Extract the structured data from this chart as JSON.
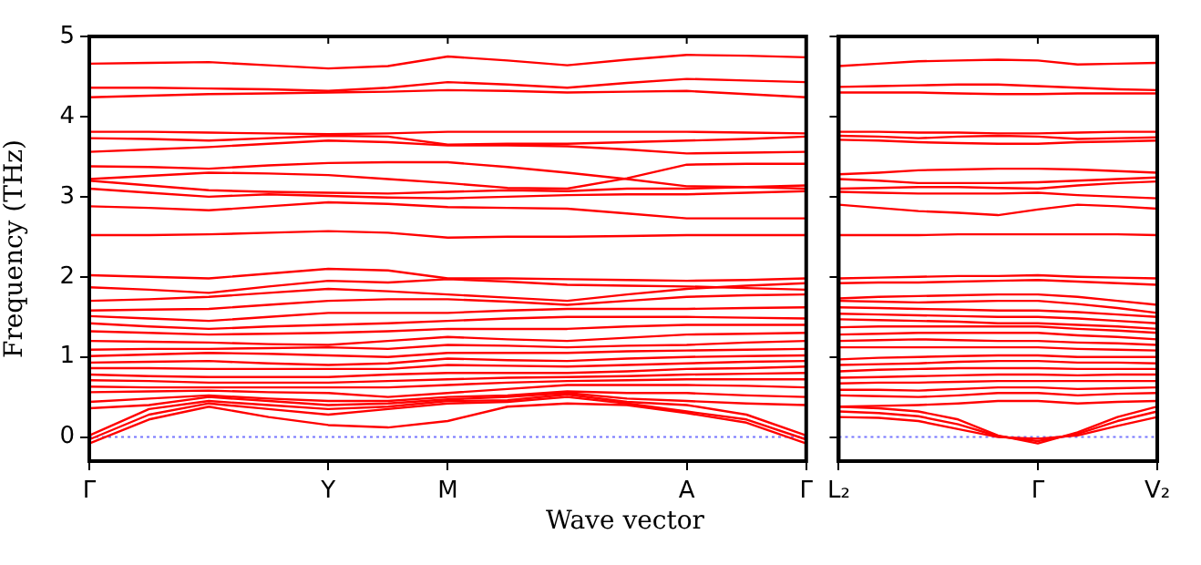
{
  "chart_data": [
    {
      "type": "line",
      "ylabel": "Frequency (THz)",
      "xlabel": "Wave vector",
      "grid": false,
      "legend": false,
      "categories": [
        "Γ",
        null,
        null,
        null,
        "Y",
        null,
        "M",
        null,
        null,
        null,
        "A",
        null,
        "Γ"
      ],
      "ylim": [
        -0.3,
        5
      ],
      "yticks": [
        0,
        1,
        2,
        3,
        4,
        5
      ],
      "ref_lines": [
        {
          "axis": "y",
          "value": 0,
          "color": "#7777ff",
          "line_style": "dotted"
        }
      ],
      "series": [
        {
          "color": "#ff0000",
          "values": [
            4.66,
            4.67,
            4.68,
            4.64,
            4.6,
            4.63,
            4.75,
            4.7,
            4.64,
            4.71,
            4.77,
            4.76,
            4.74
          ]
        },
        {
          "color": "#ff0000",
          "values": [
            4.36,
            4.36,
            4.35,
            4.34,
            4.32,
            4.36,
            4.43,
            4.4,
            4.36,
            4.42,
            4.47,
            4.45,
            4.43
          ]
        },
        {
          "color": "#ff0000",
          "values": [
            4.24,
            4.26,
            4.28,
            4.29,
            4.3,
            4.31,
            4.33,
            4.32,
            4.3,
            4.31,
            4.32,
            4.28,
            4.24
          ]
        },
        {
          "color": "#ff0000",
          "values": [
            3.81,
            3.81,
            3.8,
            3.79,
            3.78,
            3.79,
            3.81,
            3.81,
            3.81,
            3.81,
            3.81,
            3.8,
            3.79
          ]
        },
        {
          "color": "#ff0000",
          "values": [
            3.73,
            3.72,
            3.7,
            3.73,
            3.76,
            3.75,
            3.65,
            3.66,
            3.66,
            3.68,
            3.7,
            3.72,
            3.75
          ]
        },
        {
          "color": "#ff0000",
          "values": [
            3.56,
            3.59,
            3.62,
            3.66,
            3.7,
            3.68,
            3.64,
            3.64,
            3.63,
            3.59,
            3.54,
            3.55,
            3.56
          ]
        },
        {
          "color": "#ff0000",
          "values": [
            3.38,
            3.37,
            3.35,
            3.39,
            3.42,
            3.43,
            3.43,
            3.37,
            3.3,
            3.22,
            3.13,
            3.12,
            3.1
          ]
        },
        {
          "color": "#ff0000",
          "values": [
            3.22,
            3.26,
            3.3,
            3.29,
            3.27,
            3.22,
            3.17,
            3.11,
            3.1,
            3.23,
            3.4,
            3.41,
            3.41
          ]
        },
        {
          "color": "#ff0000",
          "values": [
            3.2,
            3.14,
            3.08,
            3.06,
            3.05,
            3.04,
            3.06,
            3.08,
            3.07,
            3.1,
            3.1,
            3.12,
            3.14
          ]
        },
        {
          "color": "#ff0000",
          "values": [
            3.1,
            3.05,
            3.0,
            3.03,
            3.01,
            2.99,
            2.98,
            3.0,
            3.02,
            3.03,
            3.03,
            3.05,
            3.07
          ]
        },
        {
          "color": "#ff0000",
          "values": [
            2.88,
            2.86,
            2.83,
            2.88,
            2.93,
            2.91,
            2.87,
            2.86,
            2.85,
            2.79,
            2.73,
            2.73,
            2.73
          ]
        },
        {
          "color": "#ff0000",
          "values": [
            2.52,
            2.52,
            2.53,
            2.55,
            2.57,
            2.55,
            2.49,
            2.5,
            2.5,
            2.51,
            2.52,
            2.52,
            2.52
          ]
        },
        {
          "color": "#ff0000",
          "values": [
            2.02,
            2.0,
            1.98,
            2.04,
            2.1,
            2.08,
            1.98,
            1.98,
            1.97,
            1.96,
            1.95,
            1.96,
            1.98
          ]
        },
        {
          "color": "#ff0000",
          "values": [
            1.87,
            1.84,
            1.8,
            1.88,
            1.95,
            1.93,
            1.97,
            1.94,
            1.9,
            1.89,
            1.88,
            1.86,
            1.84
          ]
        },
        {
          "color": "#ff0000",
          "values": [
            1.7,
            1.72,
            1.75,
            1.8,
            1.85,
            1.82,
            1.78,
            1.74,
            1.7,
            1.78,
            1.85,
            1.89,
            1.92
          ]
        },
        {
          "color": "#ff0000",
          "values": [
            1.58,
            1.59,
            1.6,
            1.65,
            1.7,
            1.72,
            1.72,
            1.69,
            1.65,
            1.7,
            1.75,
            1.77,
            1.78
          ]
        },
        {
          "color": "#ff0000",
          "values": [
            1.51,
            1.48,
            1.45,
            1.5,
            1.55,
            1.55,
            1.55,
            1.58,
            1.6,
            1.6,
            1.6,
            1.61,
            1.62
          ]
        },
        {
          "color": "#ff0000",
          "values": [
            1.42,
            1.38,
            1.35,
            1.38,
            1.4,
            1.42,
            1.45,
            1.48,
            1.5,
            1.5,
            1.5,
            1.49,
            1.48
          ]
        },
        {
          "color": "#ff0000",
          "values": [
            1.32,
            1.3,
            1.28,
            1.29,
            1.3,
            1.32,
            1.35,
            1.35,
            1.35,
            1.38,
            1.4,
            1.4,
            1.4
          ]
        },
        {
          "color": "#ff0000",
          "values": [
            1.2,
            1.19,
            1.18,
            1.16,
            1.15,
            1.2,
            1.25,
            1.22,
            1.2,
            1.24,
            1.28,
            1.29,
            1.3
          ]
        },
        {
          "color": "#ff0000",
          "values": [
            1.09,
            1.1,
            1.1,
            1.11,
            1.12,
            1.1,
            1.15,
            1.14,
            1.12,
            1.14,
            1.15,
            1.18,
            1.2
          ]
        },
        {
          "color": "#ff0000",
          "values": [
            1.01,
            1.03,
            1.05,
            1.04,
            1.02,
            1.0,
            1.05,
            1.05,
            1.05,
            1.07,
            1.08,
            1.09,
            1.1
          ]
        },
        {
          "color": "#ff0000",
          "values": [
            0.93,
            0.94,
            0.95,
            0.92,
            0.9,
            0.92,
            0.98,
            0.96,
            0.95,
            0.98,
            1.0,
            1.01,
            1.02
          ]
        },
        {
          "color": "#ff0000",
          "values": [
            0.86,
            0.86,
            0.85,
            0.85,
            0.85,
            0.85,
            0.9,
            0.89,
            0.88,
            0.9,
            0.92,
            0.94,
            0.95
          ]
        },
        {
          "color": "#ff0000",
          "values": [
            0.78,
            0.76,
            0.75,
            0.75,
            0.75,
            0.78,
            0.8,
            0.8,
            0.8,
            0.82,
            0.85,
            0.86,
            0.88
          ]
        },
        {
          "color": "#ff0000",
          "values": [
            0.71,
            0.7,
            0.68,
            0.68,
            0.68,
            0.7,
            0.72,
            0.74,
            0.75,
            0.76,
            0.78,
            0.79,
            0.8
          ]
        },
        {
          "color": "#ff0000",
          "values": [
            0.63,
            0.62,
            0.62,
            0.62,
            0.62,
            0.62,
            0.65,
            0.68,
            0.7,
            0.71,
            0.72,
            0.72,
            0.72
          ]
        },
        {
          "color": "#ff0000",
          "values": [
            0.56,
            0.57,
            0.58,
            0.56,
            0.55,
            0.5,
            0.55,
            0.6,
            0.65,
            0.65,
            0.65,
            0.64,
            0.62
          ]
        },
        {
          "color": "#ff0000",
          "values": [
            0.44,
            0.48,
            0.52,
            0.48,
            0.45,
            0.45,
            0.5,
            0.52,
            0.57,
            0.55,
            0.55,
            0.52,
            0.5
          ]
        },
        {
          "color": "#ff0000",
          "values": [
            0.36,
            0.4,
            0.5,
            0.45,
            0.4,
            0.42,
            0.47,
            0.5,
            0.55,
            0.48,
            0.45,
            0.42,
            0.4
          ]
        },
        {
          "color": "#ff0000",
          "values": [
            0.02,
            0.35,
            0.45,
            0.4,
            0.35,
            0.38,
            0.45,
            0.46,
            0.53,
            0.44,
            0.4,
            0.28,
            0.02
          ]
        },
        {
          "color": "#ff0000",
          "values": [
            -0.03,
            0.28,
            0.42,
            0.35,
            0.28,
            0.35,
            0.42,
            0.44,
            0.5,
            0.42,
            0.32,
            0.22,
            -0.03
          ]
        },
        {
          "color": "#ff0000",
          "values": [
            -0.08,
            0.22,
            0.38,
            0.25,
            0.15,
            0.12,
            0.2,
            0.38,
            0.42,
            0.4,
            0.3,
            0.18,
            -0.08
          ]
        }
      ]
    },
    {
      "type": "line",
      "grid": false,
      "legend": false,
      "tick_labels": "x",
      "categories": [
        "L₂",
        null,
        null,
        null,
        null,
        "Γ",
        null,
        null,
        "V₂"
      ],
      "ylim": [
        -0.3,
        5
      ],
      "yticks": [
        0,
        1,
        2,
        3,
        4,
        5
      ],
      "ref_lines": [
        {
          "axis": "y",
          "value": 0,
          "color": "#7777ff",
          "line_style": "dotted"
        }
      ],
      "series": [
        {
          "color": "#ff0000",
          "values": [
            4.63,
            4.66,
            4.69,
            4.7,
            4.71,
            4.7,
            4.65,
            4.66,
            4.67
          ]
        },
        {
          "color": "#ff0000",
          "values": [
            4.37,
            4.38,
            4.39,
            4.4,
            4.4,
            4.38,
            4.36,
            4.34,
            4.33
          ]
        },
        {
          "color": "#ff0000",
          "values": [
            4.3,
            4.3,
            4.3,
            4.29,
            4.28,
            4.28,
            4.29,
            4.29,
            4.29
          ]
        },
        {
          "color": "#ff0000",
          "values": [
            3.81,
            3.81,
            3.8,
            3.8,
            3.79,
            3.79,
            3.8,
            3.81,
            3.81
          ]
        },
        {
          "color": "#ff0000",
          "values": [
            3.76,
            3.75,
            3.73,
            3.75,
            3.76,
            3.75,
            3.72,
            3.73,
            3.74
          ]
        },
        {
          "color": "#ff0000",
          "values": [
            3.71,
            3.7,
            3.68,
            3.67,
            3.66,
            3.66,
            3.68,
            3.69,
            3.7
          ]
        },
        {
          "color": "#ff0000",
          "values": [
            3.28,
            3.3,
            3.33,
            3.34,
            3.35,
            3.35,
            3.34,
            3.32,
            3.3
          ]
        },
        {
          "color": "#ff0000",
          "values": [
            3.22,
            3.2,
            3.17,
            3.17,
            3.17,
            3.18,
            3.2,
            3.22,
            3.24
          ]
        },
        {
          "color": "#ff0000",
          "values": [
            3.1,
            3.11,
            3.12,
            3.12,
            3.11,
            3.1,
            3.14,
            3.17,
            3.19
          ]
        },
        {
          "color": "#ff0000",
          "values": [
            3.06,
            3.05,
            3.04,
            3.04,
            3.04,
            3.05,
            3.02,
            3.0,
            2.98
          ]
        },
        {
          "color": "#ff0000",
          "values": [
            2.9,
            2.86,
            2.82,
            2.8,
            2.77,
            2.84,
            2.9,
            2.88,
            2.85
          ]
        },
        {
          "color": "#ff0000",
          "values": [
            2.52,
            2.52,
            2.52,
            2.53,
            2.53,
            2.53,
            2.53,
            2.53,
            2.52
          ]
        },
        {
          "color": "#ff0000",
          "values": [
            1.98,
            1.99,
            2.0,
            2.01,
            2.01,
            2.02,
            2.0,
            1.99,
            1.98
          ]
        },
        {
          "color": "#ff0000",
          "values": [
            1.92,
            1.93,
            1.93,
            1.94,
            1.95,
            1.96,
            1.94,
            1.92,
            1.9
          ]
        },
        {
          "color": "#ff0000",
          "values": [
            1.73,
            1.75,
            1.76,
            1.77,
            1.78,
            1.78,
            1.75,
            1.7,
            1.65
          ]
        },
        {
          "color": "#ff0000",
          "values": [
            1.7,
            1.69,
            1.68,
            1.69,
            1.7,
            1.7,
            1.66,
            1.61,
            1.55
          ]
        },
        {
          "color": "#ff0000",
          "values": [
            1.62,
            1.61,
            1.6,
            1.59,
            1.58,
            1.58,
            1.56,
            1.53,
            1.5
          ]
        },
        {
          "color": "#ff0000",
          "values": [
            1.54,
            1.53,
            1.52,
            1.51,
            1.5,
            1.5,
            1.48,
            1.45,
            1.42
          ]
        },
        {
          "color": "#ff0000",
          "values": [
            1.47,
            1.46,
            1.45,
            1.44,
            1.42,
            1.42,
            1.4,
            1.38,
            1.35
          ]
        },
        {
          "color": "#ff0000",
          "values": [
            1.37,
            1.38,
            1.38,
            1.38,
            1.38,
            1.38,
            1.35,
            1.33,
            1.3
          ]
        },
        {
          "color": "#ff0000",
          "values": [
            1.28,
            1.29,
            1.3,
            1.3,
            1.3,
            1.3,
            1.27,
            1.25,
            1.22
          ]
        },
        {
          "color": "#ff0000",
          "values": [
            1.2,
            1.21,
            1.22,
            1.21,
            1.2,
            1.2,
            1.18,
            1.17,
            1.15
          ]
        },
        {
          "color": "#ff0000",
          "values": [
            1.12,
            1.12,
            1.12,
            1.12,
            1.12,
            1.12,
            1.1,
            1.09,
            1.08
          ]
        },
        {
          "color": "#ff0000",
          "values": [
            0.97,
            0.99,
            1.0,
            1.01,
            1.02,
            1.02,
            1.0,
            1.0,
            1.0
          ]
        },
        {
          "color": "#ff0000",
          "values": [
            0.9,
            0.91,
            0.92,
            0.94,
            0.95,
            0.95,
            0.93,
            0.93,
            0.92
          ]
        },
        {
          "color": "#ff0000",
          "values": [
            0.82,
            0.84,
            0.85,
            0.86,
            0.86,
            0.86,
            0.85,
            0.85,
            0.85
          ]
        },
        {
          "color": "#ff0000",
          "values": [
            0.74,
            0.75,
            0.76,
            0.77,
            0.78,
            0.78,
            0.77,
            0.78,
            0.78
          ]
        },
        {
          "color": "#ff0000",
          "values": [
            0.67,
            0.68,
            0.68,
            0.69,
            0.7,
            0.7,
            0.7,
            0.7,
            0.7
          ]
        },
        {
          "color": "#ff0000",
          "values": [
            0.59,
            0.59,
            0.58,
            0.6,
            0.62,
            0.62,
            0.6,
            0.61,
            0.62
          ]
        },
        {
          "color": "#ff0000",
          "values": [
            0.52,
            0.51,
            0.5,
            0.52,
            0.55,
            0.55,
            0.52,
            0.54,
            0.55
          ]
        },
        {
          "color": "#ff0000",
          "values": [
            0.38,
            0.39,
            0.4,
            0.42,
            0.45,
            0.45,
            0.42,
            0.44,
            0.45
          ]
        },
        {
          "color": "#ff0000",
          "values": [
            0.38,
            0.36,
            0.32,
            0.22,
            0.02,
            -0.08,
            0.06,
            0.25,
            0.38
          ]
        },
        {
          "color": "#ff0000",
          "values": [
            0.32,
            0.3,
            0.26,
            0.16,
            0.01,
            -0.05,
            0.04,
            0.2,
            0.32
          ]
        },
        {
          "color": "#ff0000",
          "values": [
            0.25,
            0.24,
            0.2,
            0.1,
            0.0,
            -0.02,
            0.02,
            0.14,
            0.25
          ]
        }
      ]
    }
  ]
}
